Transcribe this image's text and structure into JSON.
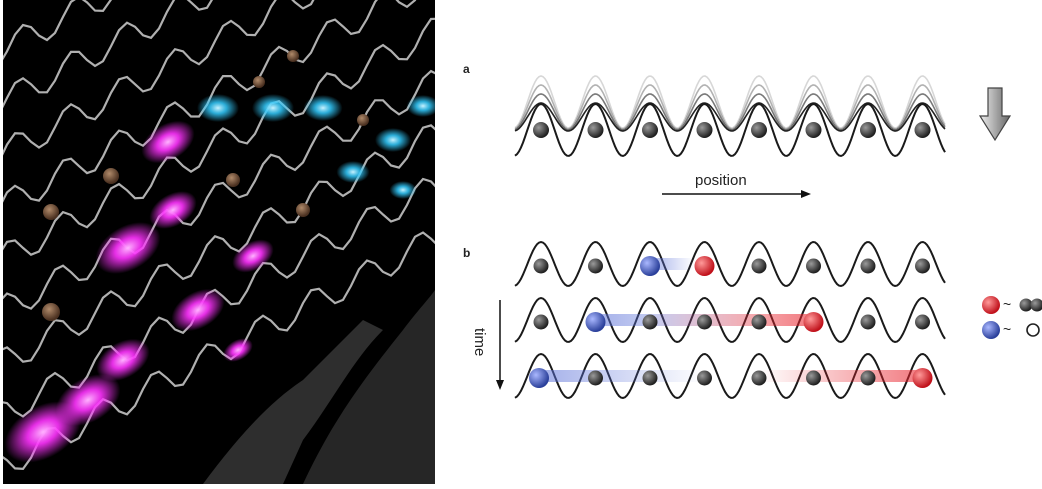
{
  "panels": {
    "a_label": "a",
    "b_label": "b"
  },
  "panel_a": {
    "axis_label": "position",
    "atoms": 8,
    "arrow": "down-arrow-icon"
  },
  "panel_b": {
    "axis_label": "time",
    "rows": [
      {
        "blue": 2,
        "red": 3
      },
      {
        "blue": 1,
        "red": 5
      },
      {
        "blue": 0,
        "red": 7
      }
    ],
    "legend": [
      {
        "symbol": "red-atom",
        "tilde": "~",
        "meaning": "doublon-icon"
      },
      {
        "symbol": "blue-atom",
        "tilde": "~",
        "meaning": "hole-icon"
      }
    ]
  },
  "colors": {
    "magenta": "#ff33ff",
    "cyan": "#33ccff",
    "red": "#e8202a",
    "blue": "#3a5fd0",
    "atom": "#3a3a3a"
  }
}
